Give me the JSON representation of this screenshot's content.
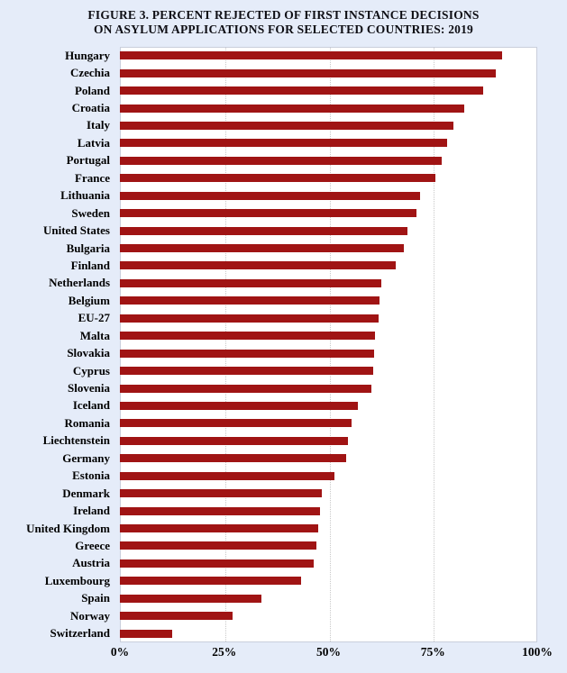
{
  "title": {
    "line1": "FIGURE 3. PERCENT REJECTED OF FIRST INSTANCE DECISIONS",
    "line2": "ON ASYLUM APPLICATIONS FOR SELECTED COUNTRIES: 2019"
  },
  "colors": {
    "bar": "#a01414",
    "page_background": "#e5ecf9",
    "plot_background": "#ffffff",
    "gridline": "#c9c9c9",
    "plot_border": "#c9cedb",
    "text": "#000000"
  },
  "chart_data": {
    "type": "bar",
    "orientation": "horizontal",
    "title": "FIGURE 3. PERCENT REJECTED OF FIRST INSTANCE DECISIONS ON ASYLUM APPLICATIONS FOR SELECTED COUNTRIES: 2019",
    "xlabel": "",
    "ylabel": "",
    "xlim": [
      0,
      100
    ],
    "x_ticks": [
      "0%",
      "25%",
      "50%",
      "75%",
      "100%"
    ],
    "grid": true,
    "legend": false,
    "unit": "%",
    "categories": [
      "Hungary",
      "Czechia",
      "Poland",
      "Croatia",
      "Italy",
      "Latvia",
      "Portugal",
      "France",
      "Lithuania",
      "Sweden",
      "United States",
      "Bulgaria",
      "Finland",
      "Netherlands",
      "Belgium",
      "EU-27",
      "Malta",
      "Slovakia",
      "Cyprus",
      "Slovenia",
      "Iceland",
      "Romania",
      "Liechtenstein",
      "Germany",
      "Estonia",
      "Denmark",
      "Ireland",
      "United Kingdom",
      "Greece",
      "Austria",
      "Luxembourg",
      "Spain",
      "Norway",
      "Switzerland"
    ],
    "values": [
      91.5,
      90,
      87,
      82.5,
      80,
      78.5,
      77,
      75.5,
      72,
      71,
      69,
      68,
      66,
      62.7,
      62.2,
      62,
      61.2,
      60.9,
      60.6,
      60.2,
      57,
      55.5,
      54.6,
      54.3,
      51.3,
      48.3,
      48,
      47.5,
      47,
      46.5,
      43.5,
      34,
      27,
      12.5
    ]
  }
}
